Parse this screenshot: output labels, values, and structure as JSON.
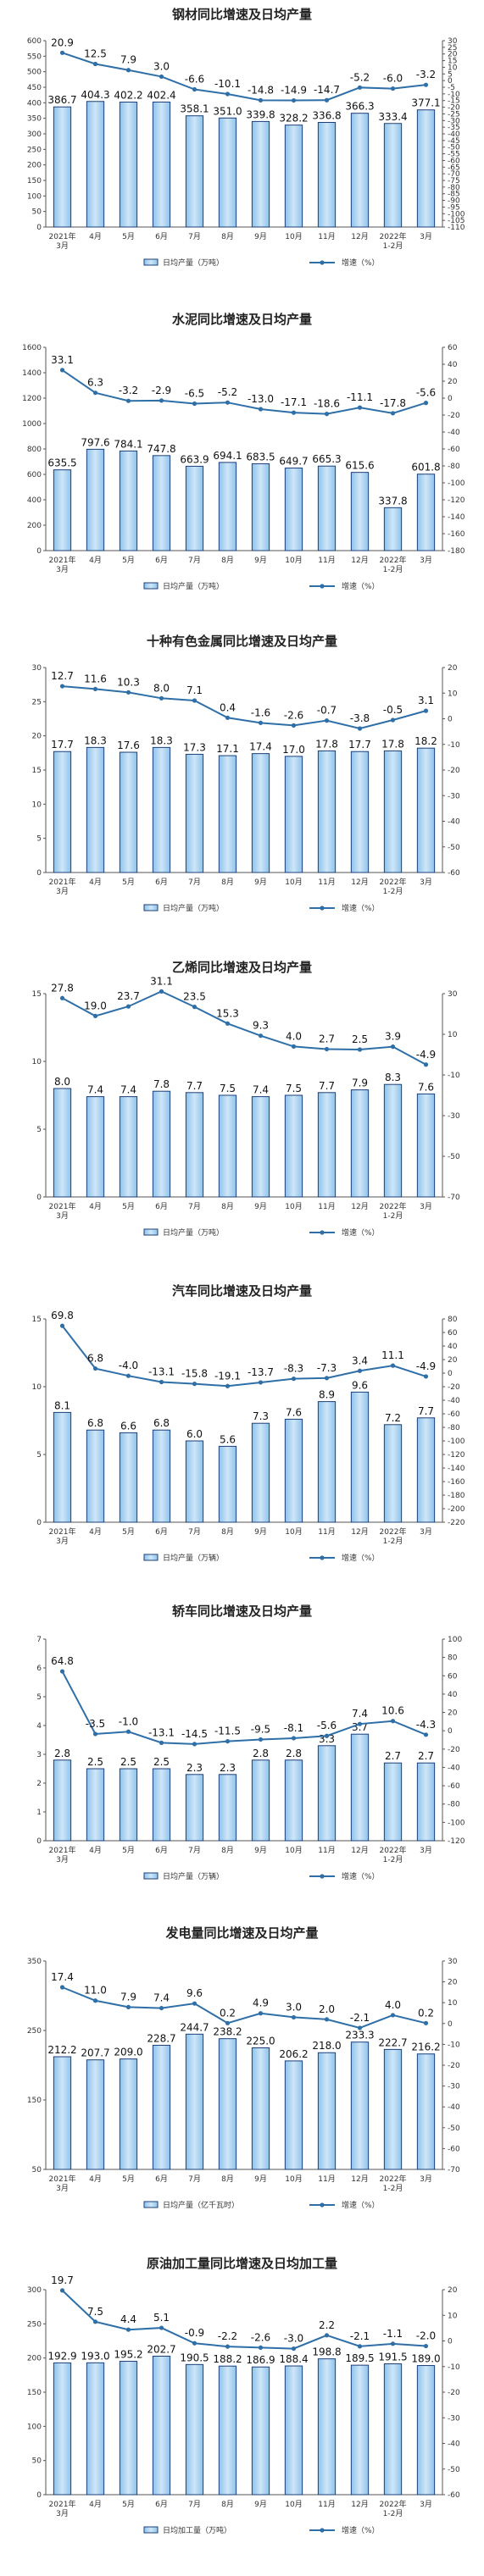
{
  "chart_data": [
    {
      "type": "bar",
      "title": "钢材同比增速及日均产量",
      "categories": [
        "2021年|3月",
        "4月",
        "5月",
        "6月",
        "7月",
        "8月",
        "9月",
        "10月",
        "11月",
        "12月",
        "2022年|1-2月",
        "3月"
      ],
      "ylim": [
        0,
        600
      ],
      "yticks": [
        0,
        50,
        100,
        150,
        200,
        250,
        300,
        350,
        400,
        450,
        500,
        550,
        600
      ],
      "y2lim": [
        -110,
        30
      ],
      "y2ticks": [
        30,
        25,
        20,
        15,
        10,
        5,
        0,
        -5,
        -10,
        -15,
        -20,
        -25,
        -30,
        -35,
        -40,
        -45,
        -50,
        -55,
        -60,
        -65,
        -70,
        -75,
        -80,
        -85,
        -90,
        -95,
        -100,
        -105,
        -110
      ],
      "series": [
        {
          "name": "日均产量（万吨）",
          "axis": "left",
          "kind": "bar",
          "values": [
            386.7,
            404.3,
            402.2,
            402.4,
            358.1,
            351.0,
            339.8,
            328.2,
            336.8,
            366.3,
            333.4,
            377.1
          ]
        },
        {
          "name": "增速（%）",
          "axis": "right",
          "kind": "line",
          "values": [
            20.9,
            12.5,
            7.9,
            3.0,
            -6.6,
            -10.1,
            -14.8,
            -14.9,
            -14.7,
            -5.2,
            -6.0,
            -3.2
          ]
        }
      ]
    },
    {
      "type": "bar",
      "title": "水泥同比增速及日均产量",
      "categories": [
        "2021年|3月",
        "4月",
        "5月",
        "6月",
        "7月",
        "8月",
        "9月",
        "10月",
        "11月",
        "12月",
        "2022年|1-2月",
        "3月"
      ],
      "ylim": [
        0,
        1600
      ],
      "yticks": [
        0,
        200,
        400,
        600,
        800,
        1000,
        1200,
        1400,
        1600
      ],
      "y2lim": [
        -180,
        60
      ],
      "y2ticks": [
        60,
        40,
        20,
        0,
        -20,
        -40,
        -60,
        -80,
        -100,
        -120,
        -140,
        -160,
        -180
      ],
      "series": [
        {
          "name": "日均产量（万吨）",
          "axis": "left",
          "kind": "bar",
          "values": [
            635.5,
            797.6,
            784.1,
            747.8,
            663.9,
            694.1,
            683.5,
            649.7,
            665.3,
            615.6,
            337.8,
            601.8
          ]
        },
        {
          "name": "增速（%）",
          "axis": "right",
          "kind": "line",
          "values": [
            33.1,
            6.3,
            -3.2,
            -2.9,
            -6.5,
            -5.2,
            -13.0,
            -17.1,
            -18.6,
            -11.1,
            -17.8,
            -5.6
          ]
        }
      ]
    },
    {
      "type": "bar",
      "title": "十种有色金属同比增速及日均产量",
      "categories": [
        "2021年|3月",
        "4月",
        "5月",
        "6月",
        "7月",
        "8月",
        "9月",
        "10月",
        "11月",
        "12月",
        "2022年|1-2月",
        "3月"
      ],
      "ylim": [
        0,
        30
      ],
      "yticks": [
        0,
        5,
        10,
        15,
        20,
        25,
        30
      ],
      "y2lim": [
        -60,
        20
      ],
      "y2ticks": [
        20,
        10,
        0,
        -10,
        -20,
        -30,
        -40,
        -50,
        -60
      ],
      "series": [
        {
          "name": "日均产量（万吨）",
          "axis": "left",
          "kind": "bar",
          "values": [
            17.7,
            18.3,
            17.6,
            18.3,
            17.3,
            17.1,
            17.4,
            17.0,
            17.8,
            17.7,
            17.8,
            18.2
          ]
        },
        {
          "name": "增速（%）",
          "axis": "right",
          "kind": "line",
          "values": [
            12.7,
            11.6,
            10.3,
            8.0,
            7.1,
            0.4,
            -1.6,
            -2.6,
            -0.7,
            -3.8,
            -0.5,
            3.1
          ]
        }
      ]
    },
    {
      "type": "bar",
      "title": "乙烯同比增速及日均产量",
      "categories": [
        "2021年|3月",
        "4月",
        "5月",
        "6月",
        "7月",
        "8月",
        "9月",
        "10月",
        "11月",
        "12月",
        "2022年|1-2月",
        "3月"
      ],
      "ylim": [
        0,
        15
      ],
      "yticks": [
        0,
        5,
        10,
        15
      ],
      "y2lim": [
        -70,
        30
      ],
      "y2ticks": [
        30,
        10,
        -10,
        -30,
        -50,
        -70
      ],
      "series": [
        {
          "name": "日均产量（万吨）",
          "axis": "left",
          "kind": "bar",
          "values": [
            8.0,
            7.4,
            7.4,
            7.8,
            7.7,
            7.5,
            7.4,
            7.5,
            7.7,
            7.9,
            8.3,
            7.6
          ]
        },
        {
          "name": "增速（%）",
          "axis": "right",
          "kind": "line",
          "values": [
            27.8,
            19.0,
            23.7,
            31.1,
            23.5,
            15.3,
            9.3,
            4.0,
            2.7,
            2.5,
            3.9,
            -4.9
          ]
        }
      ]
    },
    {
      "type": "bar",
      "title": "汽车同比增速及日均产量",
      "categories": [
        "2021年|3月",
        "4月",
        "5月",
        "6月",
        "7月",
        "8月",
        "9月",
        "10月",
        "11月",
        "12月",
        "2022年|1-2月",
        "3月"
      ],
      "ylim": [
        0,
        15
      ],
      "yticks": [
        0,
        5,
        10,
        15
      ],
      "y2lim": [
        -220,
        80
      ],
      "y2ticks": [
        80,
        60,
        40,
        20,
        0,
        -20,
        -40,
        -60,
        -80,
        -100,
        -120,
        -140,
        -160,
        -180,
        -200,
        -220
      ],
      "series": [
        {
          "name": "日均产量（万辆）",
          "axis": "left",
          "kind": "bar",
          "values": [
            8.1,
            6.8,
            6.6,
            6.8,
            6.0,
            5.6,
            7.3,
            7.6,
            8.9,
            9.6,
            7.2,
            7.7
          ]
        },
        {
          "name": "增速（%）",
          "axis": "right",
          "kind": "line",
          "values": [
            69.8,
            6.8,
            -4.0,
            -13.1,
            -15.8,
            -19.1,
            -13.7,
            -8.3,
            -7.3,
            3.4,
            11.1,
            -4.9
          ]
        }
      ]
    },
    {
      "type": "bar",
      "title": "轿车同比增速及日均产量",
      "categories": [
        "2021年|3月",
        "4月",
        "5月",
        "6月",
        "7月",
        "8月",
        "9月",
        "10月",
        "11月",
        "12月",
        "2022年|1-2月",
        "3月"
      ],
      "ylim": [
        0,
        7
      ],
      "yticks": [
        0,
        1,
        2,
        3,
        4,
        5,
        6,
        7
      ],
      "y2lim": [
        -120,
        100
      ],
      "y2ticks": [
        100,
        80,
        60,
        40,
        20,
        0,
        -20,
        -40,
        -60,
        -80,
        -100,
        -120
      ],
      "series": [
        {
          "name": "日均产量（万辆）",
          "axis": "left",
          "kind": "bar",
          "values": [
            2.8,
            2.5,
            2.5,
            2.5,
            2.3,
            2.3,
            2.8,
            2.8,
            3.3,
            3.7,
            2.7,
            2.7
          ]
        },
        {
          "name": "增速（%）",
          "axis": "right",
          "kind": "line",
          "values": [
            64.8,
            -3.5,
            -1.0,
            -13.1,
            -14.5,
            -11.5,
            -9.5,
            -8.1,
            -5.6,
            7.4,
            10.6,
            -4.3
          ]
        }
      ]
    },
    {
      "type": "bar",
      "title": "发电量同比增速及日均产量",
      "categories": [
        "2021年|3月",
        "4月",
        "5月",
        "6月",
        "7月",
        "8月",
        "9月",
        "10月",
        "11月",
        "12月",
        "2022年|1-2月",
        "3月"
      ],
      "ylim": [
        50,
        350
      ],
      "yticks": [
        50,
        150,
        250,
        350
      ],
      "y2lim": [
        -70,
        30
      ],
      "y2ticks": [
        30,
        20,
        10,
        0,
        -10,
        -20,
        -30,
        -40,
        -50,
        -60,
        -70
      ],
      "series": [
        {
          "name": "日均产量（亿千瓦时）",
          "axis": "left",
          "kind": "bar",
          "values": [
            212.2,
            207.7,
            209.0,
            228.7,
            244.7,
            238.2,
            225.0,
            206.2,
            218.0,
            233.3,
            222.7,
            216.2
          ]
        },
        {
          "name": "增速（%）",
          "axis": "right",
          "kind": "line",
          "values": [
            17.4,
            11.0,
            7.9,
            7.4,
            9.6,
            0.2,
            4.9,
            3.0,
            2.0,
            -2.1,
            4.0,
            0.2
          ]
        }
      ]
    },
    {
      "type": "bar",
      "title": "原油加工量同比增速及日均加工量",
      "categories": [
        "2021年|3月",
        "4月",
        "5月",
        "6月",
        "7月",
        "8月",
        "9月",
        "10月",
        "11月",
        "12月",
        "2022年|1-2月",
        "3月"
      ],
      "ylim": [
        0,
        300
      ],
      "yticks": [
        0,
        50,
        100,
        150,
        200,
        250,
        300
      ],
      "y2lim": [
        -60,
        20
      ],
      "y2ticks": [
        20,
        10,
        0,
        -10,
        -20,
        -30,
        -40,
        -50,
        -60
      ],
      "series": [
        {
          "name": "日均加工量（万吨）",
          "axis": "left",
          "kind": "bar",
          "values": [
            192.9,
            193.0,
            195.2,
            202.7,
            190.5,
            188.2,
            186.9,
            188.4,
            198.8,
            189.5,
            191.5,
            189.0
          ]
        },
        {
          "name": "增速（%）",
          "axis": "right",
          "kind": "line",
          "values": [
            19.7,
            7.5,
            4.4,
            5.1,
            -0.9,
            -2.2,
            -2.6,
            -3.0,
            2.2,
            -2.1,
            -1.1,
            -2.0
          ]
        }
      ]
    }
  ],
  "colors": {
    "bar_top": "#cfe6f8",
    "bar_mid": "#8ec3ec",
    "bar_stroke": "#1c3f78",
    "line": "#2f6fa8",
    "axis": "#555555"
  }
}
